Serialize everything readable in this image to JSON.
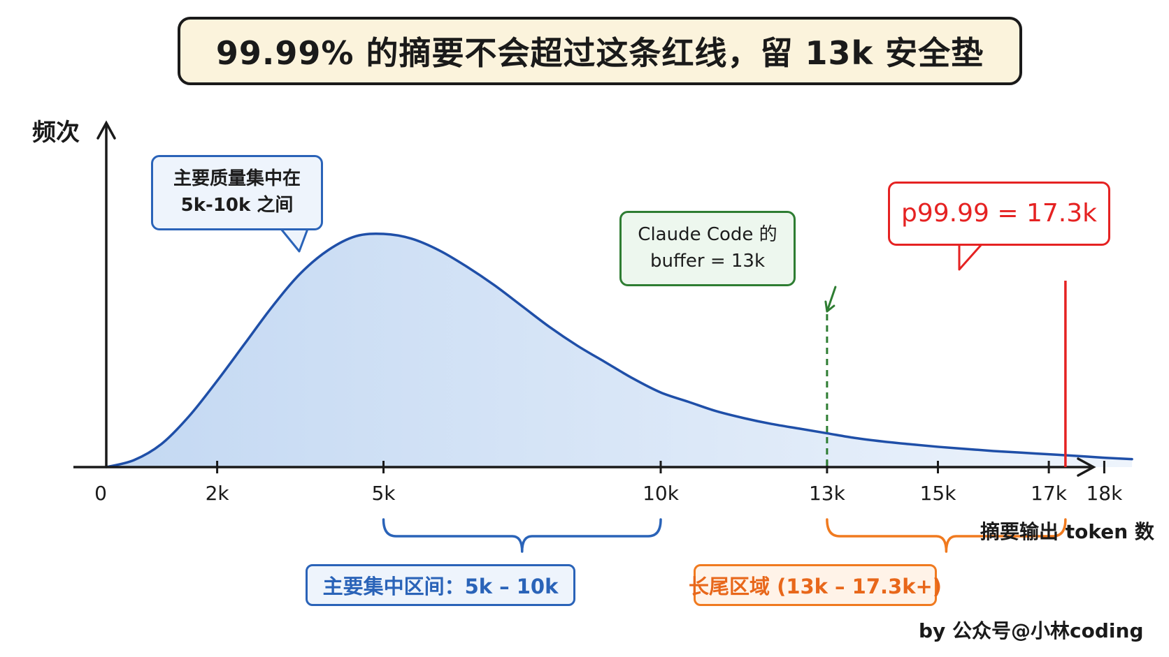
{
  "title": "99.99% 的摘要不会超过这条红线，留 13k 安全垫",
  "credit": "by 公众号@小林coding",
  "chart_data": {
    "type": "area",
    "xlabel": "摘要输出 token 数",
    "ylabel": "频次",
    "x_ticks": [
      {
        "value": 0,
        "label": "0"
      },
      {
        "value": 2000,
        "label": "2k"
      },
      {
        "value": 5000,
        "label": "5k"
      },
      {
        "value": 10000,
        "label": "10k"
      },
      {
        "value": 13000,
        "label": "13k"
      },
      {
        "value": 15000,
        "label": "15k"
      },
      {
        "value": 17000,
        "label": "17k"
      },
      {
        "value": 18000,
        "label": "18k"
      }
    ],
    "series": [
      {
        "x": [
          0,
          500,
          1000,
          1500,
          2000,
          2500,
          3000,
          3500,
          4000,
          4500,
          5000,
          5500,
          6000,
          6500,
          7000,
          7500,
          8000,
          8500,
          9000,
          9500,
          10000,
          10500,
          11000,
          11500,
          12000,
          12500,
          13000,
          13500,
          14000,
          14500,
          15000,
          15500,
          16000,
          16500,
          17000,
          17500,
          18000,
          18500
        ],
        "y": [
          0,
          3,
          10,
          22,
          37,
          53,
          69,
          83,
          93,
          99,
          100,
          98,
          93,
          86,
          78,
          69,
          60,
          52,
          45,
          38,
          32,
          28,
          24,
          21,
          18.5,
          16.5,
          14.5,
          12.5,
          11,
          9.8,
          8.7,
          7.8,
          6.9,
          6.2,
          5.5,
          4.8,
          4.0,
          3.4
        ]
      }
    ],
    "ylim": [
      0,
      100
    ],
    "xlim": [
      0,
      19200
    ],
    "color_curve": "#1f4fa8",
    "color_fill": "#c7daf3",
    "annotations": [
      {
        "id": "main-mass",
        "text_lines": [
          "主要质量集中在",
          "5k-10k 之间"
        ],
        "anchor_x": 5000,
        "color": "#2a63b8"
      },
      {
        "id": "buffer",
        "text_lines": [
          "Claude Code 的",
          "buffer = 13k"
        ],
        "x": 13000,
        "style": "dashed",
        "color": "#2e7d32"
      },
      {
        "id": "p9999",
        "text_lines": [
          "p99.99 = 17.3k"
        ],
        "x": 17300,
        "style": "solid",
        "color": "#e52222"
      }
    ],
    "ranges": [
      {
        "id": "main",
        "label": "主要集中区间：5k – 10k",
        "start": 5000,
        "end": 10000,
        "color": "#2a63b8"
      },
      {
        "id": "tail",
        "label": "长尾区域 (13k – 17.3k+)",
        "start": 13000,
        "end": 17300,
        "color": "#f07a1f"
      }
    ]
  }
}
